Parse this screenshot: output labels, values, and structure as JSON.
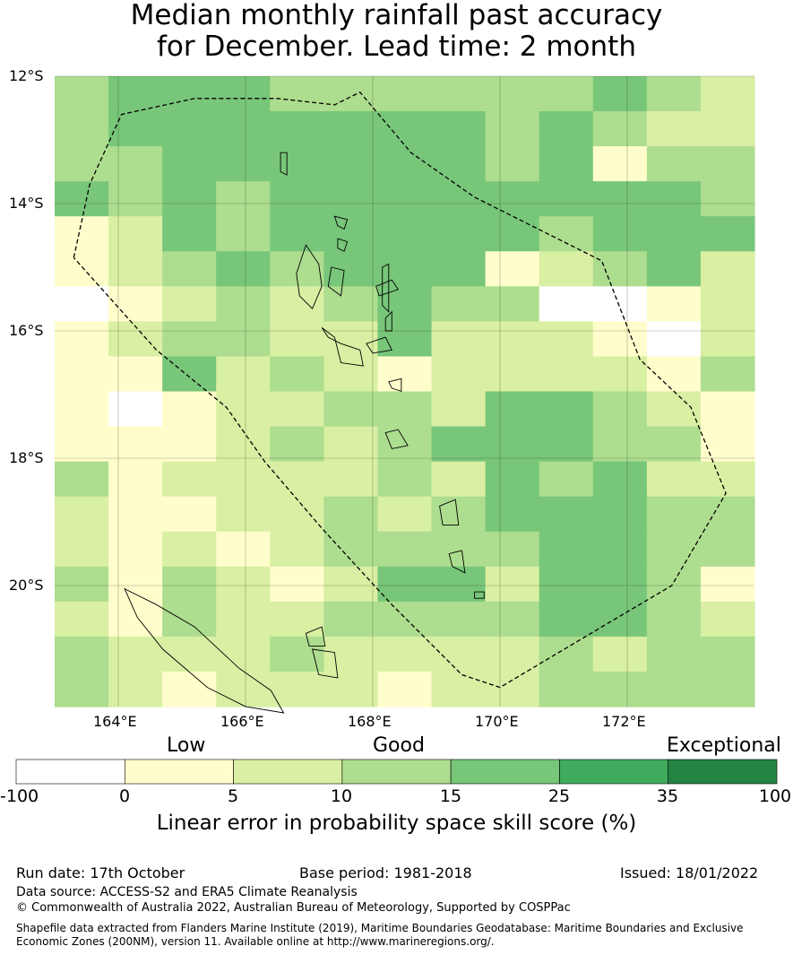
{
  "title": {
    "line1": "Median monthly rainfall past accuracy",
    "line2": "for December. Lead time: 2 month"
  },
  "map": {
    "lat_labels": [
      "12°S",
      "14°S",
      "16°S",
      "18°S",
      "20°S"
    ],
    "lon_labels": [
      "164°E",
      "166°E",
      "168°E",
      "170°E",
      "172°E"
    ],
    "grid": {
      "cols": 13,
      "rows": 18,
      "lon_start": 163.0,
      "lon_step": 0.84,
      "lat_start": -11.93,
      "lat_step": 0.555,
      "classes": [
        [
          3,
          4,
          4,
          4,
          3,
          3,
          3,
          3,
          3,
          3,
          4,
          3,
          2
        ],
        [
          3,
          4,
          4,
          4,
          4,
          4,
          4,
          4,
          3,
          4,
          3,
          2,
          2
        ],
        [
          3,
          3,
          4,
          4,
          4,
          4,
          4,
          4,
          3,
          4,
          1,
          3,
          3
        ],
        [
          4,
          3,
          4,
          3,
          4,
          4,
          4,
          4,
          4,
          4,
          4,
          4,
          3
        ],
        [
          1,
          2,
          4,
          3,
          4,
          4,
          4,
          4,
          4,
          3,
          4,
          4,
          4
        ],
        [
          1,
          2,
          3,
          4,
          3,
          4,
          4,
          4,
          1,
          2,
          3,
          4,
          2
        ],
        [
          0,
          1,
          2,
          3,
          2,
          3,
          4,
          3,
          3,
          0,
          0,
          1,
          2
        ],
        [
          1,
          2,
          3,
          3,
          2,
          2,
          4,
          2,
          2,
          2,
          1,
          0,
          2
        ],
        [
          1,
          1,
          4,
          2,
          3,
          2,
          1,
          2,
          2,
          2,
          2,
          1,
          3
        ],
        [
          1,
          0,
          1,
          2,
          2,
          3,
          3,
          2,
          4,
          4,
          3,
          2,
          1
        ],
        [
          1,
          1,
          1,
          2,
          3,
          2,
          3,
          4,
          4,
          4,
          3,
          3,
          1
        ],
        [
          3,
          1,
          2,
          2,
          2,
          2,
          3,
          2,
          4,
          3,
          4,
          2,
          2
        ],
        [
          2,
          1,
          1,
          2,
          2,
          3,
          2,
          3,
          4,
          4,
          4,
          3,
          3
        ],
        [
          2,
          1,
          2,
          1,
          2,
          3,
          3,
          3,
          3,
          4,
          4,
          3,
          3
        ],
        [
          3,
          1,
          3,
          2,
          1,
          2,
          4,
          4,
          2,
          4,
          4,
          3,
          1
        ],
        [
          2,
          1,
          3,
          2,
          2,
          3,
          3,
          3,
          3,
          4,
          4,
          3,
          2
        ],
        [
          3,
          2,
          2,
          2,
          3,
          2,
          2,
          2,
          2,
          3,
          2,
          3,
          3
        ],
        [
          3,
          2,
          1,
          2,
          2,
          2,
          1,
          2,
          2,
          3,
          3,
          3,
          3
        ]
      ]
    },
    "eez_boundary": [
      [
        163.3,
        -14.85
      ],
      [
        163.55,
        -13.7
      ],
      [
        164.05,
        -12.6
      ],
      [
        165.2,
        -12.35
      ],
      [
        166.5,
        -12.35
      ],
      [
        167.4,
        -12.45
      ],
      [
        167.8,
        -12.25
      ],
      [
        168.6,
        -13.2
      ],
      [
        169.6,
        -13.9
      ],
      [
        170.6,
        -14.4
      ],
      [
        171.6,
        -14.9
      ],
      [
        172.2,
        -16.45
      ],
      [
        173.0,
        -17.2
      ],
      [
        173.55,
        -18.55
      ],
      [
        172.7,
        -20.0
      ],
      [
        171.6,
        -20.65
      ],
      [
        170.0,
        -21.6
      ],
      [
        169.4,
        -21.4
      ],
      [
        168.3,
        -20.3
      ],
      [
        167.2,
        -19.1
      ],
      [
        166.3,
        -18.05
      ],
      [
        165.7,
        -17.2
      ],
      [
        164.6,
        -16.3
      ],
      [
        163.3,
        -14.85
      ]
    ],
    "islands": [
      [
        [
          166.8,
          -15.1
        ],
        [
          166.95,
          -14.65
        ],
        [
          167.15,
          -14.95
        ],
        [
          167.2,
          -15.3
        ],
        [
          167.05,
          -15.65
        ],
        [
          166.85,
          -15.45
        ]
      ],
      [
        [
          167.3,
          -15.3
        ],
        [
          167.35,
          -15.0
        ],
        [
          167.55,
          -15.05
        ],
        [
          167.5,
          -15.45
        ]
      ],
      [
        [
          168.05,
          -15.3
        ],
        [
          168.3,
          -15.2
        ],
        [
          168.4,
          -15.35
        ],
        [
          168.1,
          -15.45
        ]
      ],
      [
        [
          168.15,
          -15.0
        ],
        [
          168.25,
          -14.95
        ],
        [
          168.25,
          -15.7
        ],
        [
          168.15,
          -15.6
        ]
      ],
      [
        [
          168.2,
          -15.8
        ],
        [
          168.3,
          -15.7
        ],
        [
          168.3,
          -16.0
        ],
        [
          168.2,
          -16.0
        ]
      ],
      [
        [
          167.2,
          -15.95
        ],
        [
          167.4,
          -16.1
        ],
        [
          167.5,
          -16.5
        ],
        [
          167.85,
          -16.55
        ],
        [
          167.8,
          -16.3
        ],
        [
          167.5,
          -16.2
        ],
        [
          167.3,
          -16.1
        ]
      ],
      [
        [
          167.9,
          -16.2
        ],
        [
          168.2,
          -16.1
        ],
        [
          168.3,
          -16.3
        ],
        [
          168.0,
          -16.35
        ]
      ],
      [
        [
          168.25,
          -16.8
        ],
        [
          168.45,
          -16.75
        ],
        [
          168.45,
          -16.95
        ],
        [
          168.3,
          -16.9
        ]
      ],
      [
        [
          168.2,
          -17.6
        ],
        [
          168.4,
          -17.55
        ],
        [
          168.55,
          -17.8
        ],
        [
          168.3,
          -17.85
        ]
      ],
      [
        [
          167.4,
          -14.2
        ],
        [
          167.6,
          -14.25
        ],
        [
          167.55,
          -14.4
        ],
        [
          167.45,
          -14.35
        ]
      ],
      [
        [
          167.45,
          -14.55
        ],
        [
          167.6,
          -14.6
        ],
        [
          167.55,
          -14.75
        ],
        [
          167.45,
          -14.7
        ]
      ],
      [
        [
          169.05,
          -18.75
        ],
        [
          169.3,
          -18.65
        ],
        [
          169.35,
          -19.05
        ],
        [
          169.1,
          -19.05
        ]
      ],
      [
        [
          169.2,
          -19.5
        ],
        [
          169.4,
          -19.45
        ],
        [
          169.45,
          -19.8
        ],
        [
          169.25,
          -19.7
        ]
      ],
      [
        [
          169.6,
          -20.1
        ],
        [
          169.75,
          -20.1
        ],
        [
          169.75,
          -20.2
        ],
        [
          169.6,
          -20.2
        ]
      ],
      [
        [
          166.95,
          -20.75
        ],
        [
          167.2,
          -20.65
        ],
        [
          167.25,
          -20.95
        ],
        [
          167.0,
          -20.95
        ]
      ],
      [
        [
          167.05,
          -21.0
        ],
        [
          167.4,
          -21.05
        ],
        [
          167.45,
          -21.45
        ],
        [
          167.15,
          -21.4
        ]
      ],
      [
        [
          164.1,
          -20.05
        ],
        [
          164.6,
          -20.3
        ],
        [
          165.2,
          -20.65
        ],
        [
          165.9,
          -21.3
        ],
        [
          166.4,
          -21.65
        ],
        [
          166.6,
          -22.0
        ],
        [
          166.0,
          -21.9
        ],
        [
          165.4,
          -21.6
        ],
        [
          164.7,
          -21.0
        ],
        [
          164.3,
          -20.5
        ]
      ],
      [
        [
          166.55,
          -13.2
        ],
        [
          166.65,
          -13.2
        ],
        [
          166.65,
          -13.55
        ],
        [
          166.55,
          -13.5
        ]
      ]
    ]
  },
  "colorbar": {
    "categories": [
      "Low",
      "Good",
      "Exceptional"
    ],
    "ticks": [
      "-100",
      "0",
      "5",
      "10",
      "15",
      "25",
      "35",
      "100"
    ],
    "colors": [
      "#ffffff",
      "#fffdcc",
      "#d9efa3",
      "#addd8e",
      "#78c679",
      "#41ab5d",
      "#238443"
    ],
    "title": "Linear error in probability space skill score (%)"
  },
  "footer": {
    "run_date": "Run date: 17th October",
    "base_period": "Base period: 1981-2018",
    "issued": "Issued: 18/01/2022",
    "data_source": "Data source: ACCESS-S2 and ERA5 Climate Reanalysis",
    "copyright": "© Commonwealth of Australia 2022, Australian Bureau of Meteorology, Supported by COSPPac",
    "shapefile_line1": "Shapefile data extracted from Flanders Marine Institute (2019), Maritime Boundaries Geodatabase: Maritime Boundaries and Exclusive",
    "shapefile_line2": "Economic Zones (200NM), version 11. Available online at http://www.marineregions.org/."
  }
}
